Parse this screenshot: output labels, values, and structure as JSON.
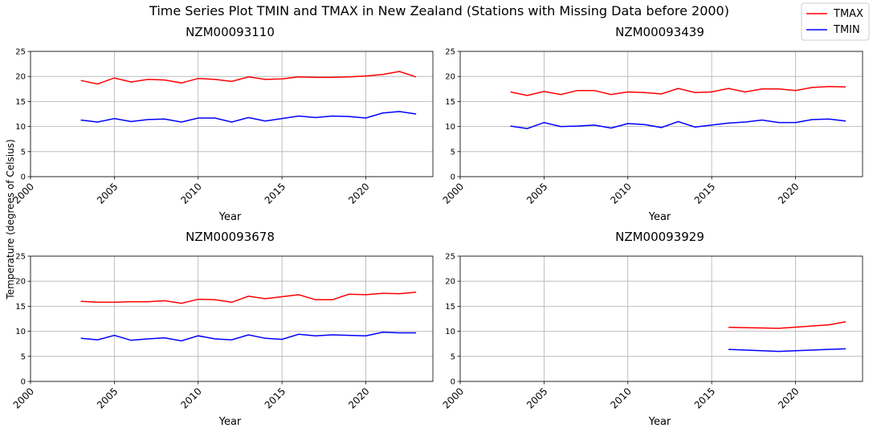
{
  "figure": {
    "suptitle": "Time Series Plot TMIN and TMAX in New Zealand (Stations with Missing Data before 2000)",
    "ylabel": "Temperature (degrees of Celsius)",
    "legend": [
      {
        "label": "TMAX",
        "color": "#ff0000"
      },
      {
        "label": "TMIN",
        "color": "#0000ff"
      }
    ],
    "legend_placement": "top-right"
  },
  "chart_data": [
    {
      "type": "line",
      "title": "NZM00093110",
      "xlabel": "Year",
      "xlim": [
        2000,
        2024
      ],
      "ylim": [
        0,
        25
      ],
      "xticks": [
        2000,
        2005,
        2010,
        2015,
        2020
      ],
      "yticks": [
        0,
        5,
        10,
        15,
        20,
        25
      ],
      "grid": true,
      "series": [
        {
          "name": "TMAX",
          "color": "#ff0000",
          "x": [
            2003,
            2004,
            2005,
            2006,
            2007,
            2008,
            2009,
            2010,
            2011,
            2012,
            2013,
            2014,
            2015,
            2016,
            2017,
            2018,
            2019,
            2020,
            2021,
            2022,
            2023
          ],
          "y": [
            19.2,
            18.5,
            19.7,
            18.9,
            19.4,
            19.3,
            18.7,
            19.6,
            19.4,
            19.0,
            19.9,
            19.4,
            19.5,
            19.9,
            19.8,
            19.8,
            19.9,
            20.1,
            20.4,
            21.0,
            19.9
          ]
        },
        {
          "name": "TMIN",
          "color": "#0000ff",
          "x": [
            2003,
            2004,
            2005,
            2006,
            2007,
            2008,
            2009,
            2010,
            2011,
            2012,
            2013,
            2014,
            2015,
            2016,
            2017,
            2018,
            2019,
            2020,
            2021,
            2022,
            2023
          ],
          "y": [
            11.3,
            10.9,
            11.6,
            11.0,
            11.4,
            11.5,
            10.9,
            11.7,
            11.7,
            10.9,
            11.8,
            11.1,
            11.6,
            12.1,
            11.8,
            12.1,
            12.0,
            11.7,
            12.7,
            13.0,
            12.5
          ]
        }
      ]
    },
    {
      "type": "line",
      "title": "NZM00093439",
      "xlabel": "Year",
      "xlim": [
        2000,
        2024
      ],
      "ylim": [
        0,
        25
      ],
      "xticks": [
        2000,
        2005,
        2010,
        2015,
        2020
      ],
      "yticks": [
        0,
        5,
        10,
        15,
        20,
        25
      ],
      "grid": true,
      "series": [
        {
          "name": "TMAX",
          "color": "#ff0000",
          "x": [
            2003,
            2004,
            2005,
            2006,
            2007,
            2008,
            2009,
            2010,
            2011,
            2012,
            2013,
            2014,
            2015,
            2016,
            2017,
            2018,
            2019,
            2020,
            2021,
            2022,
            2023
          ],
          "y": [
            16.9,
            16.2,
            17.0,
            16.4,
            17.2,
            17.2,
            16.4,
            16.9,
            16.8,
            16.5,
            17.6,
            16.8,
            16.9,
            17.6,
            16.9,
            17.5,
            17.5,
            17.2,
            17.8,
            18.0,
            17.9
          ]
        },
        {
          "name": "TMIN",
          "color": "#0000ff",
          "x": [
            2003,
            2004,
            2005,
            2006,
            2007,
            2008,
            2009,
            2010,
            2011,
            2012,
            2013,
            2014,
            2015,
            2016,
            2017,
            2018,
            2019,
            2020,
            2021,
            2022,
            2023
          ],
          "y": [
            10.1,
            9.6,
            10.8,
            10.0,
            10.1,
            10.3,
            9.7,
            10.6,
            10.4,
            9.8,
            11.0,
            9.9,
            10.3,
            10.7,
            10.9,
            11.3,
            10.8,
            10.8,
            11.4,
            11.5,
            11.1
          ]
        }
      ]
    },
    {
      "type": "line",
      "title": "NZM00093678",
      "xlabel": "Year",
      "xlim": [
        2000,
        2024
      ],
      "ylim": [
        0,
        25
      ],
      "xticks": [
        2000,
        2005,
        2010,
        2015,
        2020
      ],
      "yticks": [
        0,
        5,
        10,
        15,
        20,
        25
      ],
      "grid": true,
      "series": [
        {
          "name": "TMAX",
          "color": "#ff0000",
          "x": [
            2003,
            2004,
            2005,
            2006,
            2007,
            2008,
            2009,
            2010,
            2011,
            2012,
            2013,
            2014,
            2015,
            2016,
            2017,
            2018,
            2019,
            2020,
            2021,
            2022,
            2023
          ],
          "y": [
            16.0,
            15.8,
            15.8,
            15.9,
            15.9,
            16.1,
            15.6,
            16.4,
            16.3,
            15.8,
            17.0,
            16.5,
            16.9,
            17.3,
            16.3,
            16.3,
            17.4,
            17.3,
            17.6,
            17.5,
            17.8
          ]
        },
        {
          "name": "TMIN",
          "color": "#0000ff",
          "x": [
            2003,
            2004,
            2005,
            2006,
            2007,
            2008,
            2009,
            2010,
            2011,
            2012,
            2013,
            2014,
            2015,
            2016,
            2017,
            2018,
            2019,
            2020,
            2021,
            2022,
            2023
          ],
          "y": [
            8.6,
            8.3,
            9.2,
            8.2,
            8.5,
            8.7,
            8.1,
            9.1,
            8.5,
            8.3,
            9.3,
            8.6,
            8.4,
            9.4,
            9.1,
            9.3,
            9.2,
            9.1,
            9.8,
            9.7,
            9.7
          ]
        }
      ]
    },
    {
      "type": "line",
      "title": "NZM00093929",
      "xlabel": "Year",
      "xlim": [
        2000,
        2024
      ],
      "ylim": [
        0,
        25
      ],
      "xticks": [
        2000,
        2005,
        2010,
        2015,
        2020
      ],
      "yticks": [
        0,
        5,
        10,
        15,
        20,
        25
      ],
      "grid": true,
      "series": [
        {
          "name": "TMAX",
          "color": "#ff0000",
          "x": [
            2016,
            2019,
            2022,
            2023
          ],
          "y": [
            10.8,
            10.6,
            11.3,
            11.9
          ]
        },
        {
          "name": "TMIN",
          "color": "#0000ff",
          "x": [
            2016,
            2019,
            2022,
            2023
          ],
          "y": [
            6.4,
            6.0,
            6.4,
            6.5
          ]
        }
      ]
    }
  ]
}
